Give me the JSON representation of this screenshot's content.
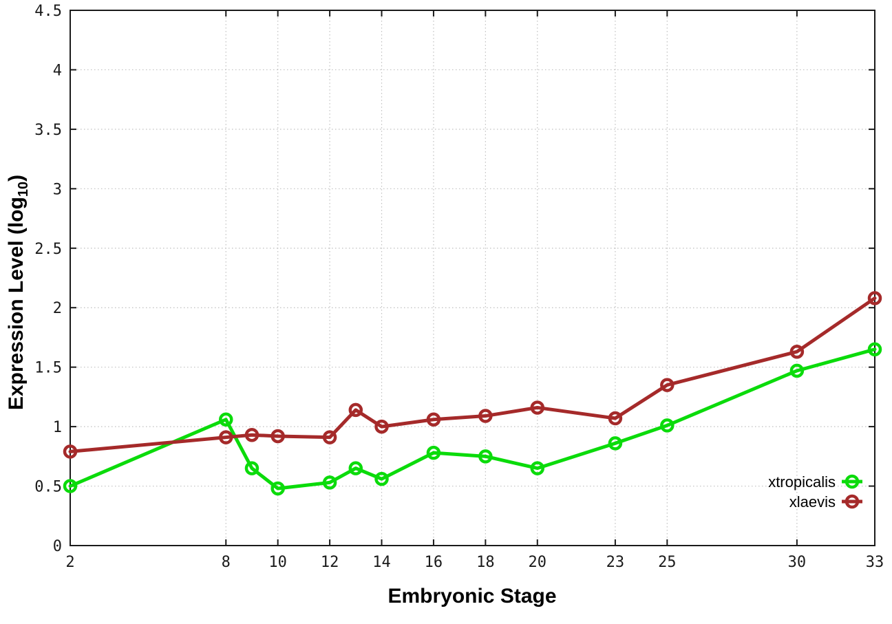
{
  "chart_data": {
    "type": "line",
    "title": "",
    "xlabel": "Embryonic Stage",
    "ylabel": "Expression Level (log10)",
    "ylabel_parts": {
      "main": "Expression Level (log",
      "sub": "10",
      "end": ")"
    },
    "x": [
      2,
      8,
      9,
      10,
      12,
      13,
      14,
      16,
      18,
      20,
      23,
      25,
      30,
      33
    ],
    "series": [
      {
        "name": "xtropicalis",
        "color": "#0BDB0B",
        "values": [
          0.5,
          1.06,
          0.65,
          0.48,
          0.53,
          0.65,
          0.56,
          0.78,
          0.75,
          0.65,
          0.86,
          1.01,
          1.47,
          1.65
        ]
      },
      {
        "name": "xlaevis",
        "color": "#A52A2A",
        "values": [
          0.79,
          0.91,
          0.93,
          0.92,
          0.91,
          1.14,
          1.0,
          1.06,
          1.09,
          1.16,
          1.07,
          1.35,
          1.63,
          2.08
        ]
      }
    ],
    "xlim": [
      2,
      33
    ],
    "ylim": [
      0,
      4.5
    ],
    "x_ticks": [
      2,
      8,
      10,
      12,
      14,
      16,
      18,
      20,
      23,
      25,
      30,
      33
    ],
    "x_tick_labels": [
      "2",
      "8",
      "10",
      "12",
      "14",
      "16",
      "18",
      "20",
      "23",
      "25",
      "30",
      "33"
    ],
    "y_ticks": [
      0,
      0.5,
      1,
      1.5,
      2,
      2.5,
      3,
      3.5,
      4,
      4.5
    ],
    "y_tick_labels": [
      "0",
      "0.5",
      "1",
      "1.5",
      "2",
      "2.5",
      "3",
      "3.5",
      "4",
      "4.5"
    ],
    "grid": true,
    "grid_style": "dotted",
    "marker": "open-circle",
    "legend_position": "inside-bottom-right",
    "colors": {
      "grid": "#bfbfbf",
      "axis": "#1a1a1a",
      "tick_text": "#1a1a1a",
      "background": "#ffffff"
    }
  }
}
